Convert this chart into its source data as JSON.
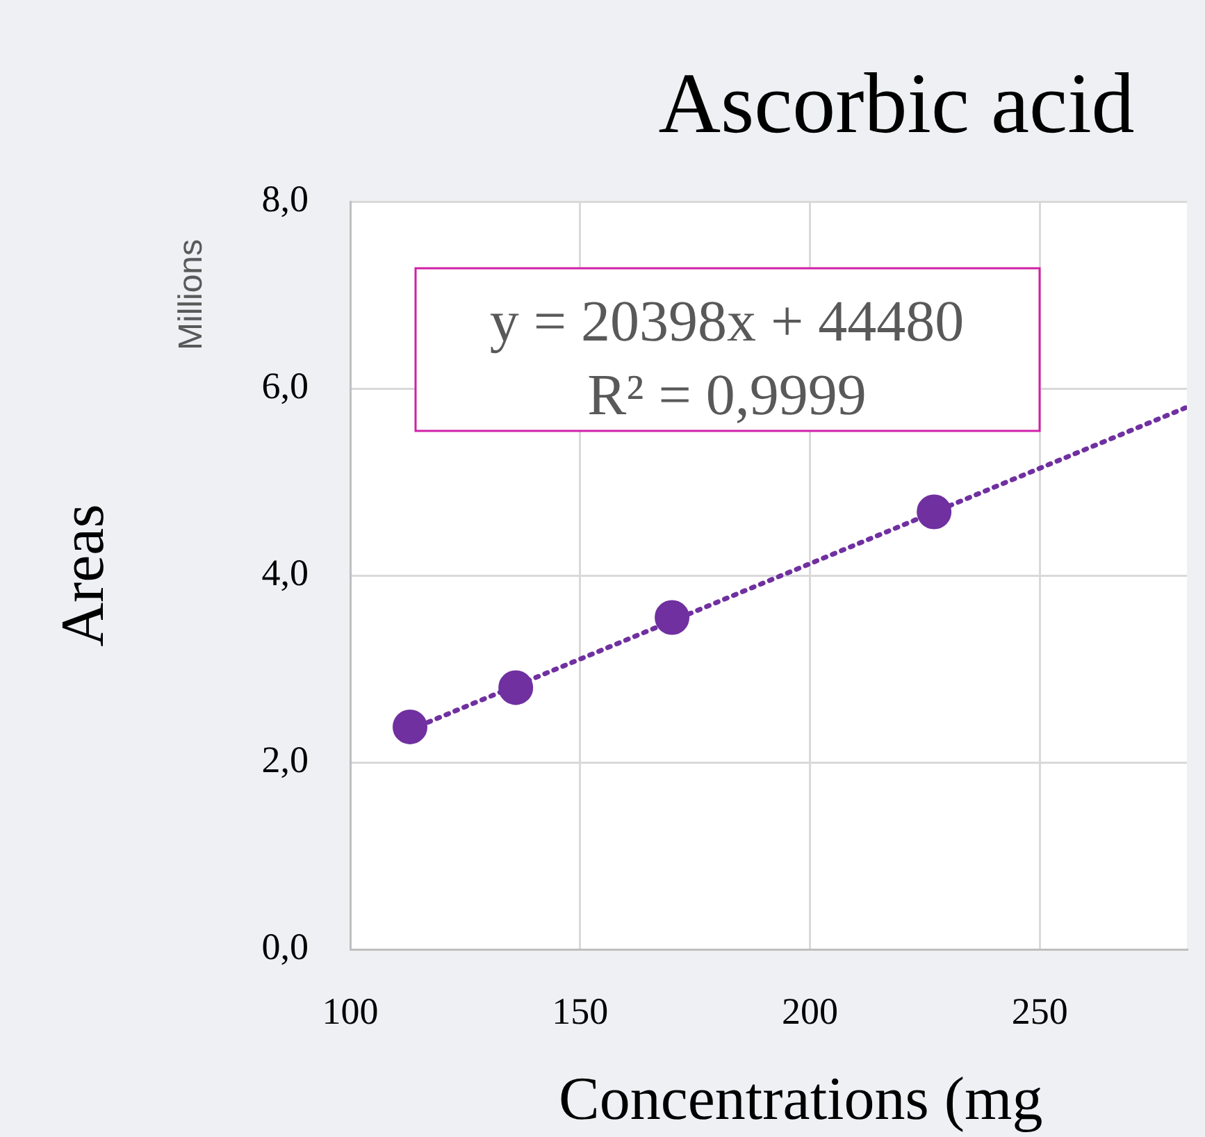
{
  "chart_data": {
    "type": "scatter",
    "title": "Ascorbic acid",
    "xlabel": "Concentrations (mg",
    "ylabel": "Areas",
    "annotations": [
      "y = 20398x + 44480",
      "R² = 0,9999",
      "Millions"
    ],
    "xlim": [
      100,
      282
    ],
    "xticks": [
      100,
      150,
      200,
      250
    ],
    "ylim": [
      0,
      8
    ],
    "yticks": [
      {
        "value": 0,
        "label": "0,0"
      },
      {
        "value": 2,
        "label": "2,0"
      },
      {
        "value": 4,
        "label": "4,0"
      },
      {
        "value": 6,
        "label": "6,0"
      },
      {
        "value": 8,
        "label": "8,0"
      }
    ],
    "grid": true,
    "legend": false,
    "marker": "circle",
    "series": [
      {
        "type": "scatter",
        "color": "#7030a0",
        "x": [
          113,
          136,
          170,
          227
        ],
        "values": [
          2.38,
          2.8,
          3.55,
          4.68
        ]
      },
      {
        "type": "line",
        "color": "#7030a0",
        "line_style": "dotted",
        "marker": "none",
        "x": [
          113,
          282
        ],
        "values": [
          2.35,
          5.8
        ]
      }
    ]
  }
}
